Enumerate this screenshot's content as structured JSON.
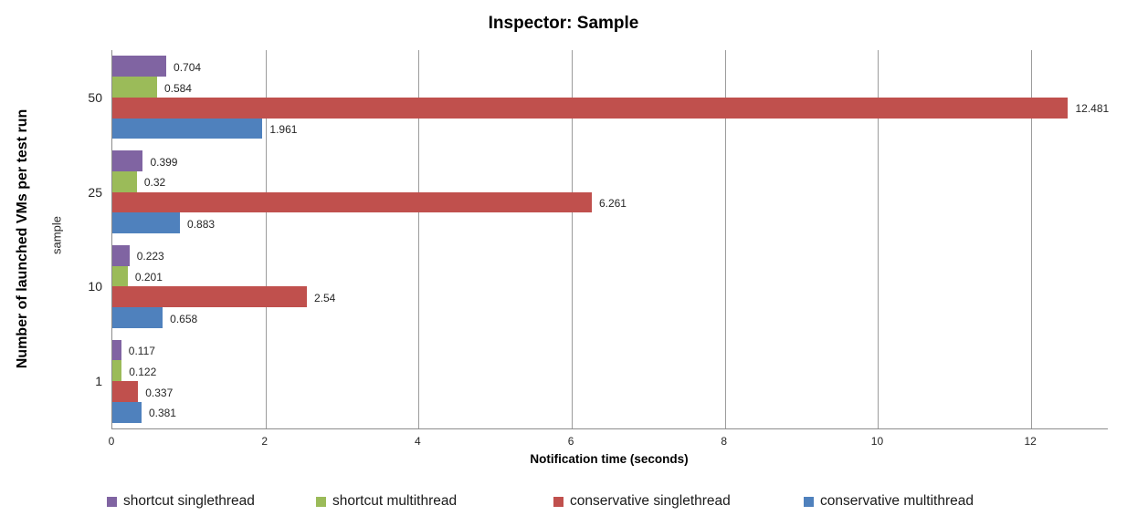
{
  "title": "Inspector: Sample",
  "chart_data": {
    "type": "bar",
    "orientation": "horizontal",
    "title": "Inspector: Sample",
    "categories": [
      "50",
      "25",
      "10",
      "1"
    ],
    "series": [
      {
        "name": "shortcut singlethread",
        "color": "#8064A2",
        "values": [
          0.704,
          0.399,
          0.223,
          0.117
        ],
        "labels": [
          "0.704",
          "0.399",
          "0.223",
          "0.117"
        ]
      },
      {
        "name": "shortcut multithread",
        "color": "#9BBB59",
        "values": [
          0.584,
          0.32,
          0.201,
          0.122
        ],
        "labels": [
          "0.584",
          "0.32",
          "0.201",
          "0.122"
        ]
      },
      {
        "name": "conservative singlethread",
        "color": "#C0504D",
        "values": [
          12.481,
          6.261,
          2.54,
          0.337
        ],
        "labels": [
          "12.481",
          "6.261",
          "2.54",
          "0.337"
        ]
      },
      {
        "name": "conservative multithread",
        "color": "#4F81BD",
        "values": [
          1.961,
          0.883,
          0.658,
          0.381
        ],
        "labels": [
          "1.961",
          "0.883",
          "0.658",
          "0.381"
        ]
      }
    ],
    "xlabel": "Notification time (seconds)",
    "ylabel": "Number of launched VMs per test run",
    "ylabel_secondary": "sample",
    "x_ticks": [
      "0",
      "2",
      "4",
      "6",
      "8",
      "10",
      "12"
    ],
    "xlim": [
      0,
      13
    ],
    "grid": true,
    "data_labels": true,
    "legend_position": "bottom"
  },
  "colors": {
    "background": "#FFFFFF",
    "axis": "#8C8C8C",
    "gridline": "#9C9C9C",
    "text": "#262626"
  }
}
